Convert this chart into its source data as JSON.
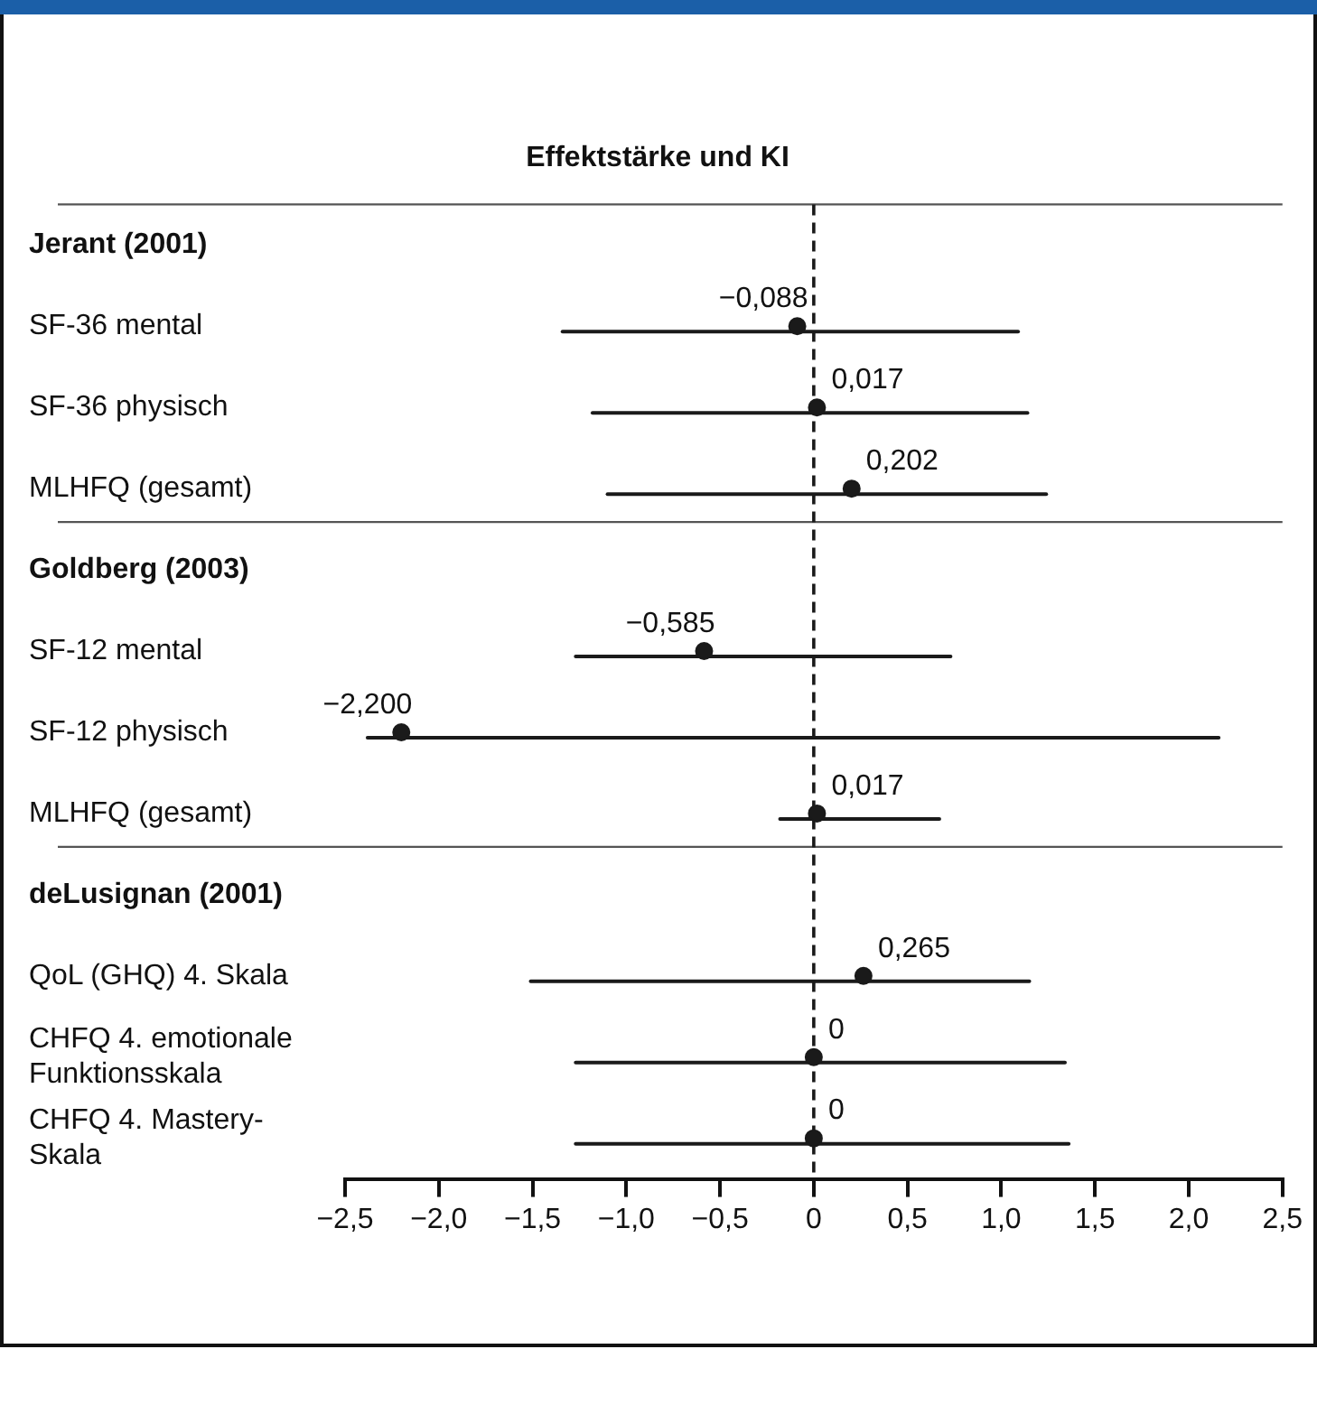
{
  "chart_data": {
    "type": "scatter",
    "orientation": "horizontal",
    "title": "Effektstärke und KI",
    "categories": [
      "Jerant (2001)",
      "SF-36 mental",
      "SF-36 physisch",
      "MLHFQ (gesamt)",
      "Goldberg (2003)",
      "SF-12 mental",
      "SF-12 physisch",
      "MLHFQ (gesamt)",
      "deLusignan (2001)",
      "QoL (GHQ) 4. Skala",
      "CHFQ 4. emotionale Funktionsskala",
      "CHFQ 4. Mastery-Skala"
    ],
    "values": [
      null,
      -0.088,
      0.017,
      0.202,
      null,
      -0.585,
      -2.2,
      0.017,
      null,
      0.265,
      0,
      0
    ],
    "errors": [
      null,
      [
        -1.34,
        1.09
      ],
      [
        -1.18,
        1.14
      ],
      [
        -1.1,
        1.24
      ],
      null,
      [
        -1.27,
        0.73
      ],
      [
        -2.38,
        2.16
      ],
      [
        -0.18,
        0.67
      ],
      null,
      [
        -1.51,
        1.15
      ],
      [
        -1.27,
        1.34
      ],
      [
        -1.27,
        1.36
      ]
    ],
    "value_labels": [
      null,
      "−0,088",
      "0,017",
      "0,202",
      null,
      "−0,585",
      "−2,200",
      "0,017",
      null,
      "0,265",
      "0",
      "0"
    ],
    "color": "#1a1a1a",
    "marker": "circle",
    "xlim": [
      -2.5,
      2.5
    ],
    "xticks": [
      {
        "value": -2.5,
        "label": "−2,5"
      },
      {
        "value": -2,
        "label": "−2,0"
      },
      {
        "value": -1.5,
        "label": "−1,5"
      },
      {
        "value": -1,
        "label": "−1,0"
      },
      {
        "value": -0.5,
        "label": "−0,5"
      },
      0,
      {
        "value": 0.5,
        "label": "0,5"
      },
      {
        "value": 1,
        "label": "1,0"
      },
      {
        "value": 1.5,
        "label": "1,5"
      },
      {
        "value": 2,
        "label": "2,0"
      },
      {
        "value": 2.5,
        "label": "2,5"
      }
    ],
    "ref_lines": [
      {
        "axis": "x",
        "value": 0,
        "line_style": "dashed",
        "color": "#1a1a1a"
      }
    ],
    "grid": false,
    "legend": false
  }
}
